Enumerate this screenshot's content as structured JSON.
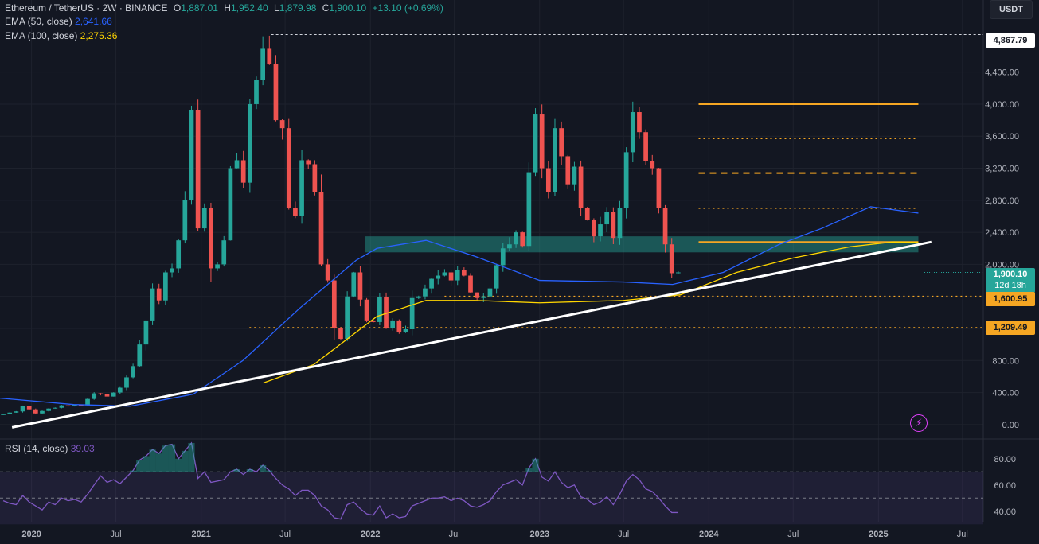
{
  "legend": {
    "symbol": "Ethereum / TetherUS · 2W · BINANCE",
    "open_label": "O",
    "open": "1,887.01",
    "high_label": "H",
    "high": "1,952.40",
    "low_label": "L",
    "low": "1,879.98",
    "close_label": "C",
    "close": "1,900.10",
    "change": "+13.10 (+0.69%)",
    "ema50_label": "EMA (50, close)",
    "ema50_value": "2,641.66",
    "ema100_label": "EMA (100, close)",
    "ema100_value": "2,275.36",
    "rsi_label": "RSI (14, close)",
    "rsi_value": "39.03"
  },
  "currency_button": "USDT",
  "price_tags": {
    "ath": "4,867.79",
    "last": "1,900.10",
    "countdown": "12d 18h",
    "support1": "1,600.95",
    "support2": "1,209.49"
  },
  "colors": {
    "up": "#26a69a",
    "down": "#ef5350",
    "ema50": "#2962ff",
    "ema100": "#ffd600",
    "rsi": "#7e57c2",
    "level": "#f5a623"
  },
  "chart_data": {
    "type": "candlestick",
    "symbol": "ETHUSDT",
    "interval": "2W",
    "y_ticks": [
      "0.00",
      "400.00",
      "800.00",
      "1,200.00",
      "1,600.00",
      "2,000.00",
      "2,400.00",
      "2,800.00",
      "3,200.00",
      "3,600.00",
      "4,000.00",
      "4,400.00"
    ],
    "y_tick_values": [
      0,
      400,
      800,
      1200,
      1600,
      2000,
      2400,
      2800,
      3200,
      3600,
      4000,
      4400
    ],
    "ylim": [
      -180,
      5300
    ],
    "x_ticks": [
      "2020",
      "Jul",
      "2021",
      "Jul",
      "2022",
      "Jul",
      "2023",
      "Jul",
      "2024",
      "Jul",
      "2025",
      "Jul"
    ],
    "x_tick_dates": [
      "2020-01-01",
      "2020-07-01",
      "2021-01-01",
      "2021-07-01",
      "2022-01-01",
      "2022-07-01",
      "2023-01-01",
      "2023-07-01",
      "2024-01-01",
      "2024-07-01",
      "2025-01-01",
      "2025-07-01"
    ],
    "xlim": [
      "2019-10-25",
      "2025-08-15"
    ],
    "closes": [
      130,
      150,
      165,
      230,
      190,
      140,
      170,
      200,
      210,
      240,
      232,
      245,
      240,
      320,
      390,
      380,
      350,
      400,
      460,
      590,
      730,
      1000,
      1300,
      1700,
      1550,
      1900,
      1950,
      2300,
      2800,
      3930,
      2450,
      2700,
      1950,
      2000,
      2300,
      3200,
      3300,
      3020,
      4000,
      4300,
      4700,
      4500,
      3800,
      3700,
      2700,
      2600,
      3300,
      3250,
      2900,
      2000,
      1800,
      1200,
      1070,
      1600,
      1900,
      1560,
      1300,
      1280,
      1590,
      1200,
      1300,
      1150,
      1190,
      1580,
      1600,
      1700,
      1820,
      1860,
      1900,
      1800,
      1930,
      1860,
      1650,
      1580,
      1600,
      1700,
      1990,
      2200,
      2250,
      2400,
      2230,
      3150,
      3880,
      3200,
      2900,
      3700,
      3350,
      3000,
      3220,
      2700,
      2550,
      2350,
      2500,
      2650,
      2330,
      2700,
      3400,
      3900,
      3650,
      3290,
      3200,
      2700,
      2250,
      1890,
      1900
    ],
    "ath_date": "2021-11-10",
    "ath_value": 4867.79,
    "horizontal_levels": [
      {
        "value": 4000,
        "style": "solid"
      },
      {
        "value": 3570,
        "style": "dotted"
      },
      {
        "value": 3140,
        "style": "dashed"
      },
      {
        "value": 2700,
        "style": "dotted"
      },
      {
        "value": 2280,
        "style": "solid"
      },
      {
        "value": 1600.95,
        "style": "dotted"
      },
      {
        "value": 1209.49,
        "style": "dotted"
      }
    ],
    "zone": {
      "from_date": "2021-12-20",
      "to_date": "2025-03-28",
      "low": 2150,
      "high": 2350
    },
    "trendline": {
      "from_date": "2019-11-20",
      "from_value": -35,
      "to_date": "2025-04-25",
      "to_value": 2280
    },
    "ema50": {
      "dates": [
        "2019-10-25",
        "2020-04-01",
        "2020-08-01",
        "2020-12-15",
        "2021-04-01",
        "2021-08-01",
        "2021-12-01",
        "2022-01-15",
        "2022-05-01",
        "2022-08-15",
        "2023-01-01",
        "2023-07-01",
        "2023-10-15",
        "2024-02-01",
        "2024-06-01",
        "2024-09-01",
        "2024-12-15",
        "2025-03-28"
      ],
      "values": [
        330,
        250,
        230,
        380,
        800,
        1450,
        2050,
        2200,
        2300,
        2100,
        1800,
        1780,
        1750,
        1900,
        2250,
        2450,
        2720,
        2640
      ]
    },
    "ema100": {
      "dates": [
        "2021-05-15",
        "2021-09-01",
        "2022-01-15",
        "2022-05-01",
        "2022-08-15",
        "2023-01-01",
        "2023-07-01",
        "2023-11-01",
        "2024-03-01",
        "2024-07-01",
        "2024-11-01",
        "2025-02-01",
        "2025-03-28"
      ],
      "values": [
        520,
        750,
        1350,
        1550,
        1550,
        1520,
        1550,
        1620,
        1900,
        2080,
        2220,
        2280,
        2275
      ]
    },
    "rsi": {
      "ylim": [
        32,
        95
      ],
      "y_ticks": [
        "40.00",
        "60.00",
        "80.00"
      ],
      "y_tick_values": [
        40,
        60,
        80
      ],
      "band": [
        30,
        70
      ],
      "midline": 50,
      "values": [
        48,
        46,
        45,
        52,
        47,
        44,
        41,
        47,
        45,
        50,
        48,
        49,
        47,
        53,
        60,
        67,
        62,
        64,
        61,
        66,
        71,
        79,
        82,
        87,
        84,
        90,
        91,
        80,
        86,
        92,
        65,
        70,
        62,
        63,
        64,
        70,
        72,
        68,
        72,
        70,
        75,
        71,
        65,
        60,
        57,
        52,
        56,
        56,
        52,
        44,
        41,
        35,
        34,
        45,
        47,
        42,
        38,
        37,
        44,
        35,
        38,
        35,
        36,
        44,
        46,
        48,
        50,
        50,
        51,
        48,
        50,
        48,
        44,
        43,
        45,
        48,
        55,
        60,
        62,
        64,
        60,
        73,
        80,
        66,
        63,
        70,
        62,
        58,
        60,
        51,
        49,
        45,
        47,
        51,
        45,
        53,
        63,
        68,
        64,
        57,
        55,
        50,
        44,
        39,
        39
      ]
    }
  }
}
